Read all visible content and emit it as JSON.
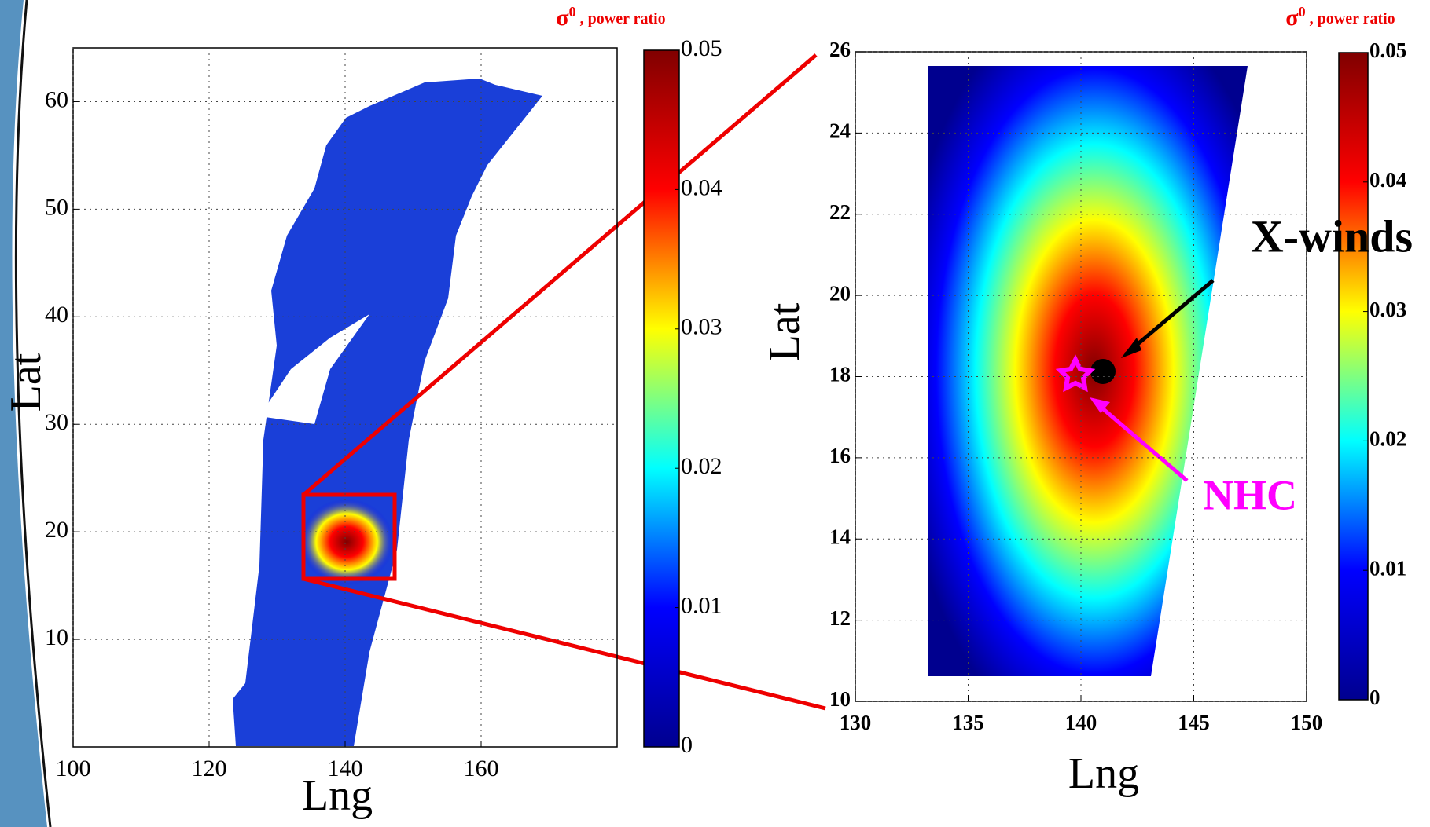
{
  "chart_data": [
    {
      "type": "map",
      "xlabel": "Lng",
      "ylabel": "Lat",
      "xlim": [
        100,
        180
      ],
      "xticks": [
        100,
        120,
        140,
        160
      ],
      "ylim": [
        0,
        65
      ],
      "yticks": [
        10,
        20,
        30,
        40,
        50,
        60
      ],
      "grid": true,
      "colormap": [
        "#00008f",
        "#0000ff",
        "#00ffff",
        "#ffff00",
        "#ff0000",
        "#800000"
      ],
      "colorbar": {
        "title": {
          "symbol": "σ",
          "superscript": "0",
          "text": " , power ratio"
        },
        "lim": [
          0,
          0.05
        ],
        "ticks": [
          0,
          0.01,
          0.02,
          0.03,
          0.04,
          0.05
        ]
      }
    },
    {
      "type": "map",
      "xlabel": "Lng",
      "ylabel": "Lat",
      "xlim": [
        130,
        150
      ],
      "xticks": [
        130,
        135,
        140,
        145,
        150
      ],
      "ylim": [
        10,
        26
      ],
      "yticks": [
        10,
        12,
        14,
        16,
        18,
        20,
        22,
        24,
        26
      ],
      "grid": true,
      "colormap": [
        "#00008f",
        "#0000ff",
        "#00ffff",
        "#ffff00",
        "#ff0000",
        "#800000"
      ],
      "colorbar": {
        "title": {
          "symbol": "σ",
          "superscript": "0",
          "text": " , power ratio"
        },
        "lim": [
          0,
          0.05
        ],
        "ticks": [
          0,
          0.01,
          0.02,
          0.03,
          0.04,
          0.05
        ]
      },
      "annotations": [
        {
          "text": "X-winds",
          "color": "#000000"
        },
        {
          "text": "NHC",
          "color": "#ff00ff"
        }
      ]
    }
  ]
}
